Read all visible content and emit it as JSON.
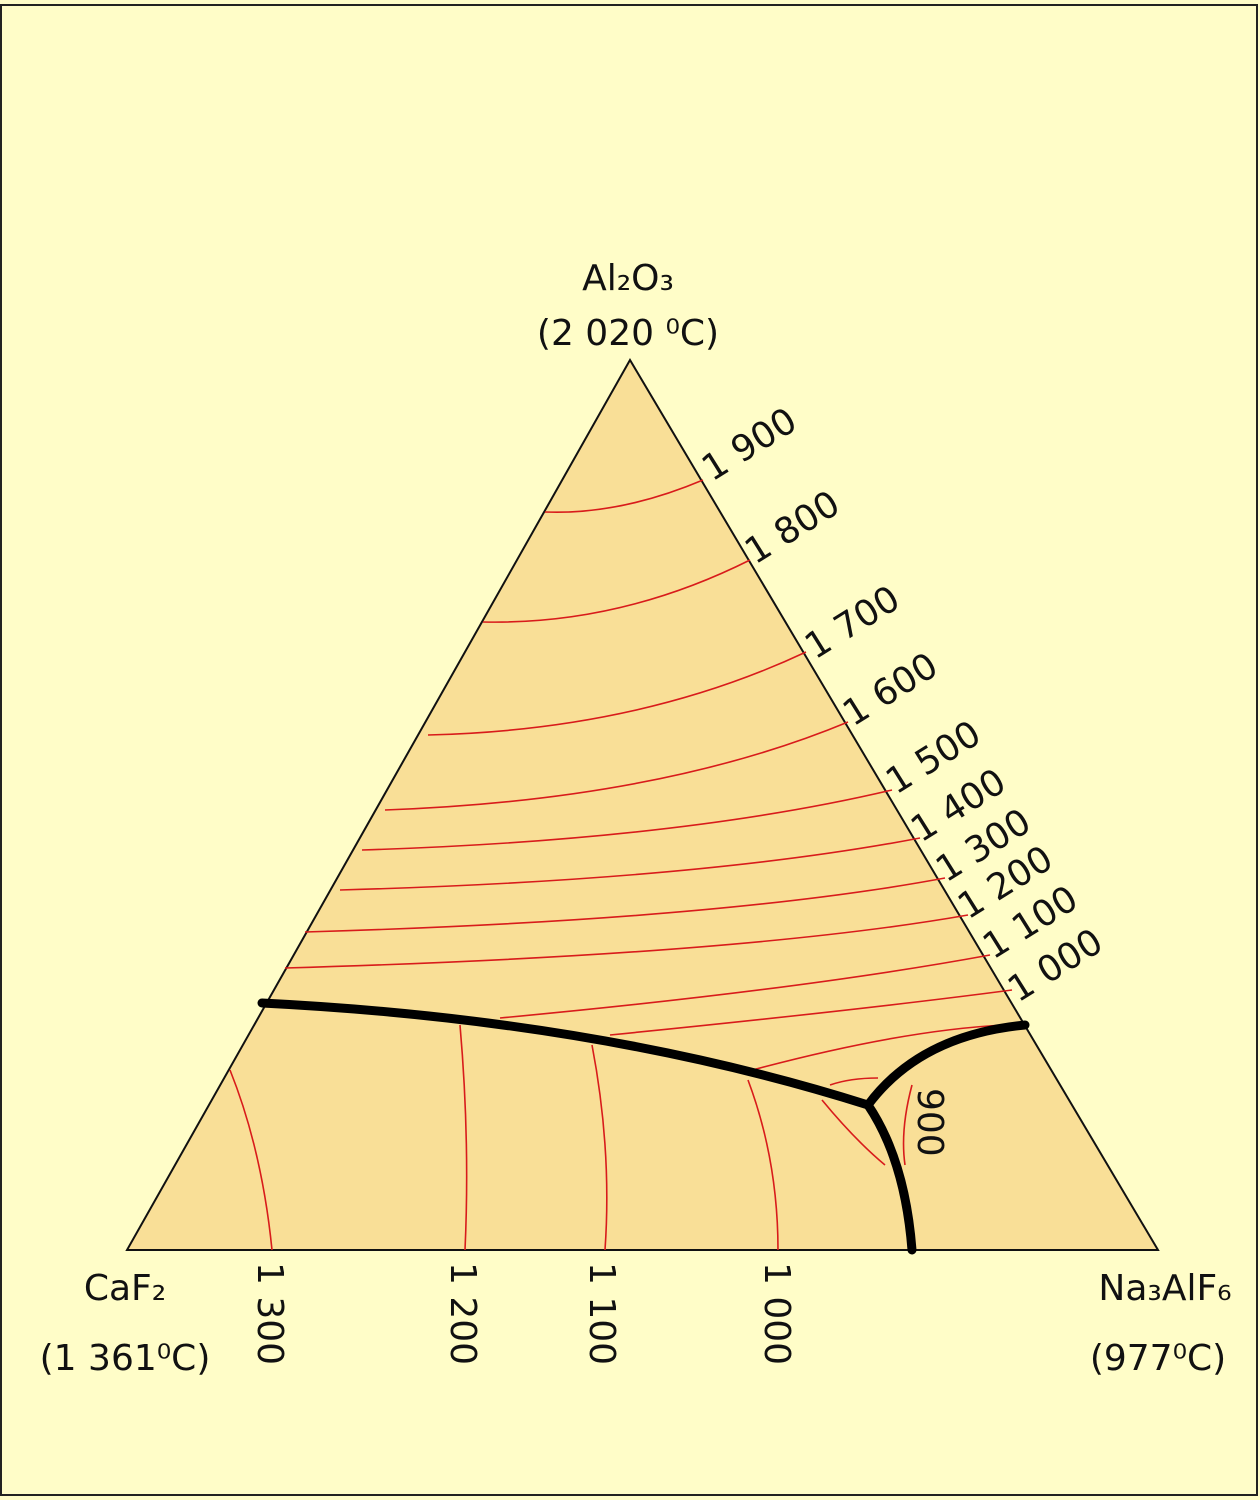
{
  "vertices": {
    "top": {
      "formula": "Al₂O₃",
      "melting_point": "(2 020 ⁰C)"
    },
    "left": {
      "formula": "CaF₂",
      "melting_point": "(1 361⁰C)"
    },
    "right": {
      "formula": "Na₃AlF₆",
      "melting_point": "(977⁰C)"
    }
  },
  "isotherm_labels": {
    "right_edge": [
      "1 900",
      "1 800",
      "1 700",
      "1 600",
      "1 500",
      "1 400",
      "1 300",
      "1 200",
      "1 100",
      "1 000"
    ],
    "bottom_edge": [
      "1 300",
      "1 200",
      "1 100",
      "1 000"
    ],
    "inner": "900"
  }
}
